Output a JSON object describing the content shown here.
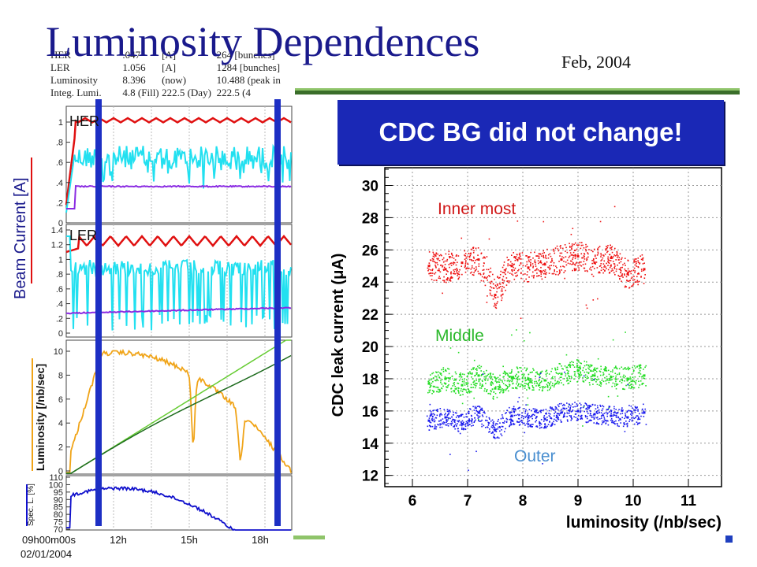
{
  "slide": {
    "title": "Luminosity Dependences",
    "date": "Feb, 2004",
    "headline": "CDC BG did not change!"
  },
  "status_table": {
    "rows": [
      [
        "HER",
        ".047",
        "[A]",
        "264 [bunches]"
      ],
      [
        "LER",
        "1.056",
        "[A]",
        "1284 [bunches]"
      ],
      [
        "Luminosity",
        "8.396",
        "(now)",
        "10.488  (peak in"
      ],
      [
        "Integ. Lumi.",
        "4.8 (Fill)",
        "222.5 (Day)",
        "222.5 (4"
      ]
    ]
  },
  "left_panels": {
    "beam_current_ylabel": "Beam Current [A]",
    "her_label": "HER",
    "ler_label": "LER",
    "her_ticks": [
      "1",
      ".8",
      ".6",
      ".4",
      ".2",
      "0"
    ],
    "ler_ticks": [
      "1.4",
      "1.2",
      "1",
      ".8",
      ".6",
      ".4",
      ".2",
      "0"
    ],
    "lumi_ylabel": "Luminosity [/nb/sec]",
    "lumi_ticks": [
      "10",
      "8",
      "6",
      "4",
      "2",
      "0"
    ],
    "spec_ylabel": "Spec. L. [%]",
    "spec_ticks": [
      "110",
      "100",
      "95",
      "90",
      "85",
      "80",
      "75",
      "70"
    ],
    "time_ticks": [
      "09h00m00s",
      "12h",
      "15h",
      "18h"
    ],
    "date_label": "02/01/2004",
    "colors": {
      "her": "#e01010",
      "ler_cyan": "#22e0f0",
      "purple": "#8a2be2",
      "lumi": "#f0a418",
      "integ_light": "#66cc33",
      "integ_dark": "#1d6b1d",
      "spec": "#1010cc",
      "marker": "#1d2fc4"
    }
  },
  "chart_data": {
    "type": "scatter",
    "title": "",
    "xlabel": "luminosity (/nb/sec)",
    "ylabel": "CDC leak current (μA)",
    "xlim": [
      5.5,
      11.6
    ],
    "ylim": [
      11.3,
      31.1
    ],
    "x_ticks": [
      6,
      7,
      8,
      9,
      10,
      11
    ],
    "y_ticks": [
      12,
      14,
      16,
      18,
      20,
      22,
      24,
      26,
      28,
      30
    ],
    "grid": true,
    "series": [
      {
        "name": "Inner most",
        "color": "#ee1111",
        "x": [
          6.3,
          6.6,
          6.9,
          7.2,
          7.5,
          7.8,
          8.1,
          8.4,
          8.7,
          9.0,
          9.3,
          9.6,
          9.9,
          10.2
        ],
        "y": [
          25.0,
          24.8,
          25.2,
          25.4,
          23.2,
          25.0,
          24.9,
          25.1,
          25.4,
          25.6,
          25.2,
          25.5,
          24.5,
          24.8
        ]
      },
      {
        "name": "Middle",
        "color": "#22dd22",
        "x": [
          6.3,
          6.6,
          6.9,
          7.2,
          7.5,
          7.8,
          8.1,
          8.4,
          8.7,
          9.0,
          9.3,
          9.6,
          9.9,
          10.2
        ],
        "y": [
          17.7,
          18.0,
          17.6,
          18.2,
          17.4,
          18.1,
          18.0,
          17.9,
          18.3,
          18.5,
          18.2,
          18.1,
          18.0,
          18.2
        ]
      },
      {
        "name": "Outer",
        "color": "#1a1aee",
        "x": [
          6.3,
          6.6,
          6.9,
          7.2,
          7.5,
          7.8,
          8.1,
          8.4,
          8.7,
          9.0,
          9.3,
          9.6,
          9.9,
          10.2
        ],
        "y": [
          15.4,
          15.6,
          15.2,
          15.9,
          14.8,
          15.7,
          15.6,
          15.5,
          15.9,
          16.0,
          15.8,
          15.7,
          15.6,
          15.9
        ]
      }
    ]
  }
}
